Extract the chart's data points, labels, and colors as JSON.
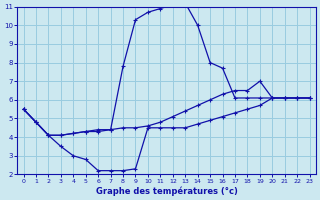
{
  "xlabel": "Graphe des températures (°c)",
  "bg_color": "#cce8f0",
  "grid_color": "#99cce0",
  "line_color": "#1111aa",
  "xlim": [
    -0.5,
    23.5
  ],
  "ylim": [
    2,
    11
  ],
  "xticks": [
    0,
    1,
    2,
    3,
    4,
    5,
    6,
    7,
    8,
    9,
    10,
    11,
    12,
    13,
    14,
    15,
    16,
    17,
    18,
    19,
    20,
    21,
    22,
    23
  ],
  "yticks": [
    2,
    3,
    4,
    5,
    6,
    7,
    8,
    9,
    10,
    11
  ],
  "series": [
    {
      "x": [
        0,
        1,
        2,
        3,
        4,
        5,
        6,
        7,
        8,
        9,
        10,
        11,
        12,
        13,
        14,
        15,
        16,
        17,
        18,
        19,
        20,
        21,
        22,
        23
      ],
      "y": [
        5.5,
        4.8,
        4.1,
        4.1,
        4.2,
        4.3,
        4.3,
        4.4,
        7.8,
        10.3,
        10.7,
        10.9,
        11.1,
        11.2,
        10.0,
        8.0,
        7.7,
        6.1,
        6.1,
        6.1,
        6.1,
        6.1,
        6.1,
        6.1
      ]
    },
    {
      "x": [
        0,
        1,
        2,
        3,
        4,
        5,
        6,
        7,
        8,
        9,
        10,
        11,
        12,
        13,
        14,
        15,
        16,
        17,
        18,
        19,
        20,
        21,
        22,
        23
      ],
      "y": [
        5.5,
        4.8,
        4.1,
        4.1,
        4.2,
        4.3,
        4.4,
        4.4,
        4.5,
        4.5,
        4.6,
        4.8,
        5.1,
        5.4,
        5.7,
        6.0,
        6.3,
        6.5,
        6.5,
        7.0,
        6.1,
        6.1,
        6.1,
        6.1
      ]
    },
    {
      "x": [
        0,
        1,
        2,
        3,
        4,
        5,
        6,
        7,
        8,
        9,
        10,
        11,
        12,
        13,
        14,
        15,
        16,
        17,
        18,
        19,
        20,
        21,
        22,
        23
      ],
      "y": [
        5.5,
        4.8,
        4.1,
        3.5,
        3.0,
        2.8,
        2.2,
        2.2,
        2.2,
        2.3,
        4.5,
        4.5,
        4.5,
        4.5,
        4.7,
        4.9,
        5.1,
        5.3,
        5.5,
        5.7,
        6.1,
        6.1,
        6.1,
        6.1
      ]
    }
  ]
}
